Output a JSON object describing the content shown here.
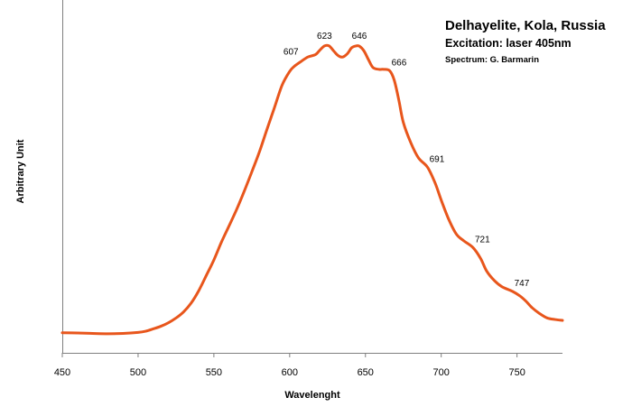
{
  "chart_data": {
    "type": "line",
    "title": "Delhayelite, Kola, Russia",
    "subtitle": "Excitation: laser 405nm",
    "credit": "Spectrum: G. Barmarin",
    "xlabel": "Wavelenght",
    "ylabel": "Arbitrary Unit",
    "xlim": [
      450,
      780
    ],
    "ylim": [
      0,
      100
    ],
    "x_ticks": [
      450,
      500,
      550,
      600,
      650,
      700,
      750
    ],
    "grid": false,
    "legend": "none",
    "line_color": "#e8561c",
    "series": [
      {
        "x": [
          450,
          460,
          470,
          480,
          490,
          500,
          505,
          510,
          515,
          520,
          525,
          530,
          535,
          540,
          545,
          550,
          555,
          560,
          565,
          570,
          575,
          580,
          585,
          590,
          595,
          600,
          603,
          607,
          612,
          617,
          620,
          623,
          626,
          629,
          632,
          635,
          638,
          641,
          644,
          646,
          649,
          652,
          655,
          659,
          662,
          666,
          669,
          672,
          675,
          680,
          685,
          691,
          696,
          700,
          705,
          710,
          715,
          721,
          726,
          730,
          735,
          740,
          747,
          752,
          756,
          760,
          765,
          770,
          775,
          780
        ],
        "y": [
          0.4,
          0.3,
          0.15,
          0.05,
          0.15,
          0.5,
          0.9,
          1.7,
          2.6,
          3.8,
          5.4,
          7.5,
          10.5,
          14.7,
          19.9,
          25.2,
          31.3,
          36.8,
          42.4,
          48.6,
          55.2,
          62.0,
          69.7,
          77.2,
          84.8,
          89.5,
          91.2,
          92.7,
          94.4,
          95.2,
          96.8,
          98.2,
          98.2,
          96.5,
          94.9,
          94.4,
          95.5,
          97.6,
          98.2,
          98.1,
          96.5,
          93.5,
          90.8,
          90.2,
          90.2,
          89.7,
          86.5,
          79.8,
          72.1,
          65.1,
          60.0,
          56.8,
          51.4,
          45.6,
          39.0,
          34.0,
          31.7,
          29.4,
          25.7,
          21.4,
          18.2,
          16.1,
          14.5,
          12.9,
          11.1,
          8.9,
          6.9,
          5.4,
          4.9,
          4.6
        ]
      }
    ],
    "annotations": [
      {
        "x": 607,
        "y": 92.7,
        "text": "607"
      },
      {
        "x": 623,
        "y": 98.2,
        "text": "623"
      },
      {
        "x": 646,
        "y": 98.1,
        "text": "646"
      },
      {
        "x": 666,
        "y": 89.7,
        "text": "666"
      },
      {
        "x": 691,
        "y": 56.8,
        "text": "691"
      },
      {
        "x": 721,
        "y": 29.4,
        "text": "721"
      },
      {
        "x": 747,
        "y": 14.5,
        "text": "747"
      }
    ]
  }
}
